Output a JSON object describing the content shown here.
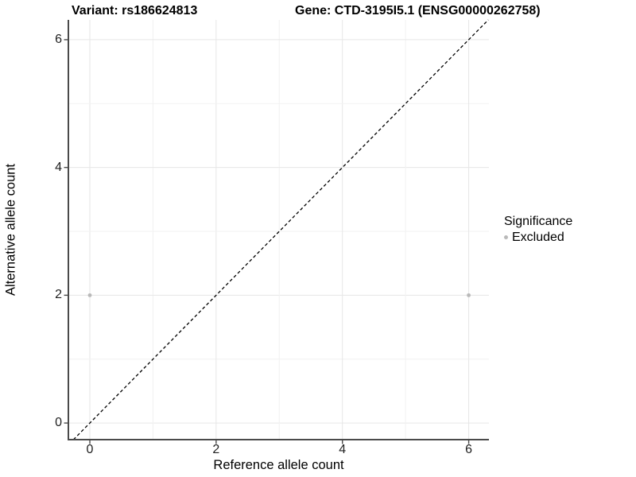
{
  "header": {
    "title_left": "Variant: rs186624813",
    "title_right": "Gene: CTD-3195I5.1 (ENSG00000262758)"
  },
  "chart_data": {
    "type": "scatter",
    "xlabel": "Reference allele count",
    "ylabel": "Alternative allele count",
    "xlim": [
      -0.34,
      6.32
    ],
    "ylim": [
      -0.26,
      6.31
    ],
    "x_ticks": [
      "0",
      "2",
      "4",
      "6"
    ],
    "x_tick_values": [
      0,
      2,
      4,
      6
    ],
    "y_ticks": [
      "0",
      "2",
      "4",
      "6"
    ],
    "y_tick_values": [
      0,
      2,
      4,
      6
    ],
    "grid_values": [
      0,
      1,
      2,
      3,
      4,
      5,
      6
    ],
    "grid": "on",
    "series": [
      {
        "name": "Excluded",
        "color": "#b9b9b9",
        "points": [
          {
            "x": 0,
            "y": 2
          },
          {
            "x": 6,
            "y": 2
          }
        ]
      }
    ],
    "reference_line": {
      "kind": "identity",
      "style": "dashed",
      "color": "#000000"
    },
    "legend": {
      "title": "Significance",
      "position": "right",
      "items": [
        {
          "label": "Excluded",
          "color": "#b9b9b9"
        }
      ]
    },
    "colors": {
      "background": "#ffffff",
      "grid_major": "#e6e6e6",
      "grid_minor": "#f2f2f2",
      "axis_line": "#4a4a4a",
      "tick_mark": "#4a4a4a",
      "text": "#000000",
      "tick_text": "#1f1f1f"
    }
  }
}
